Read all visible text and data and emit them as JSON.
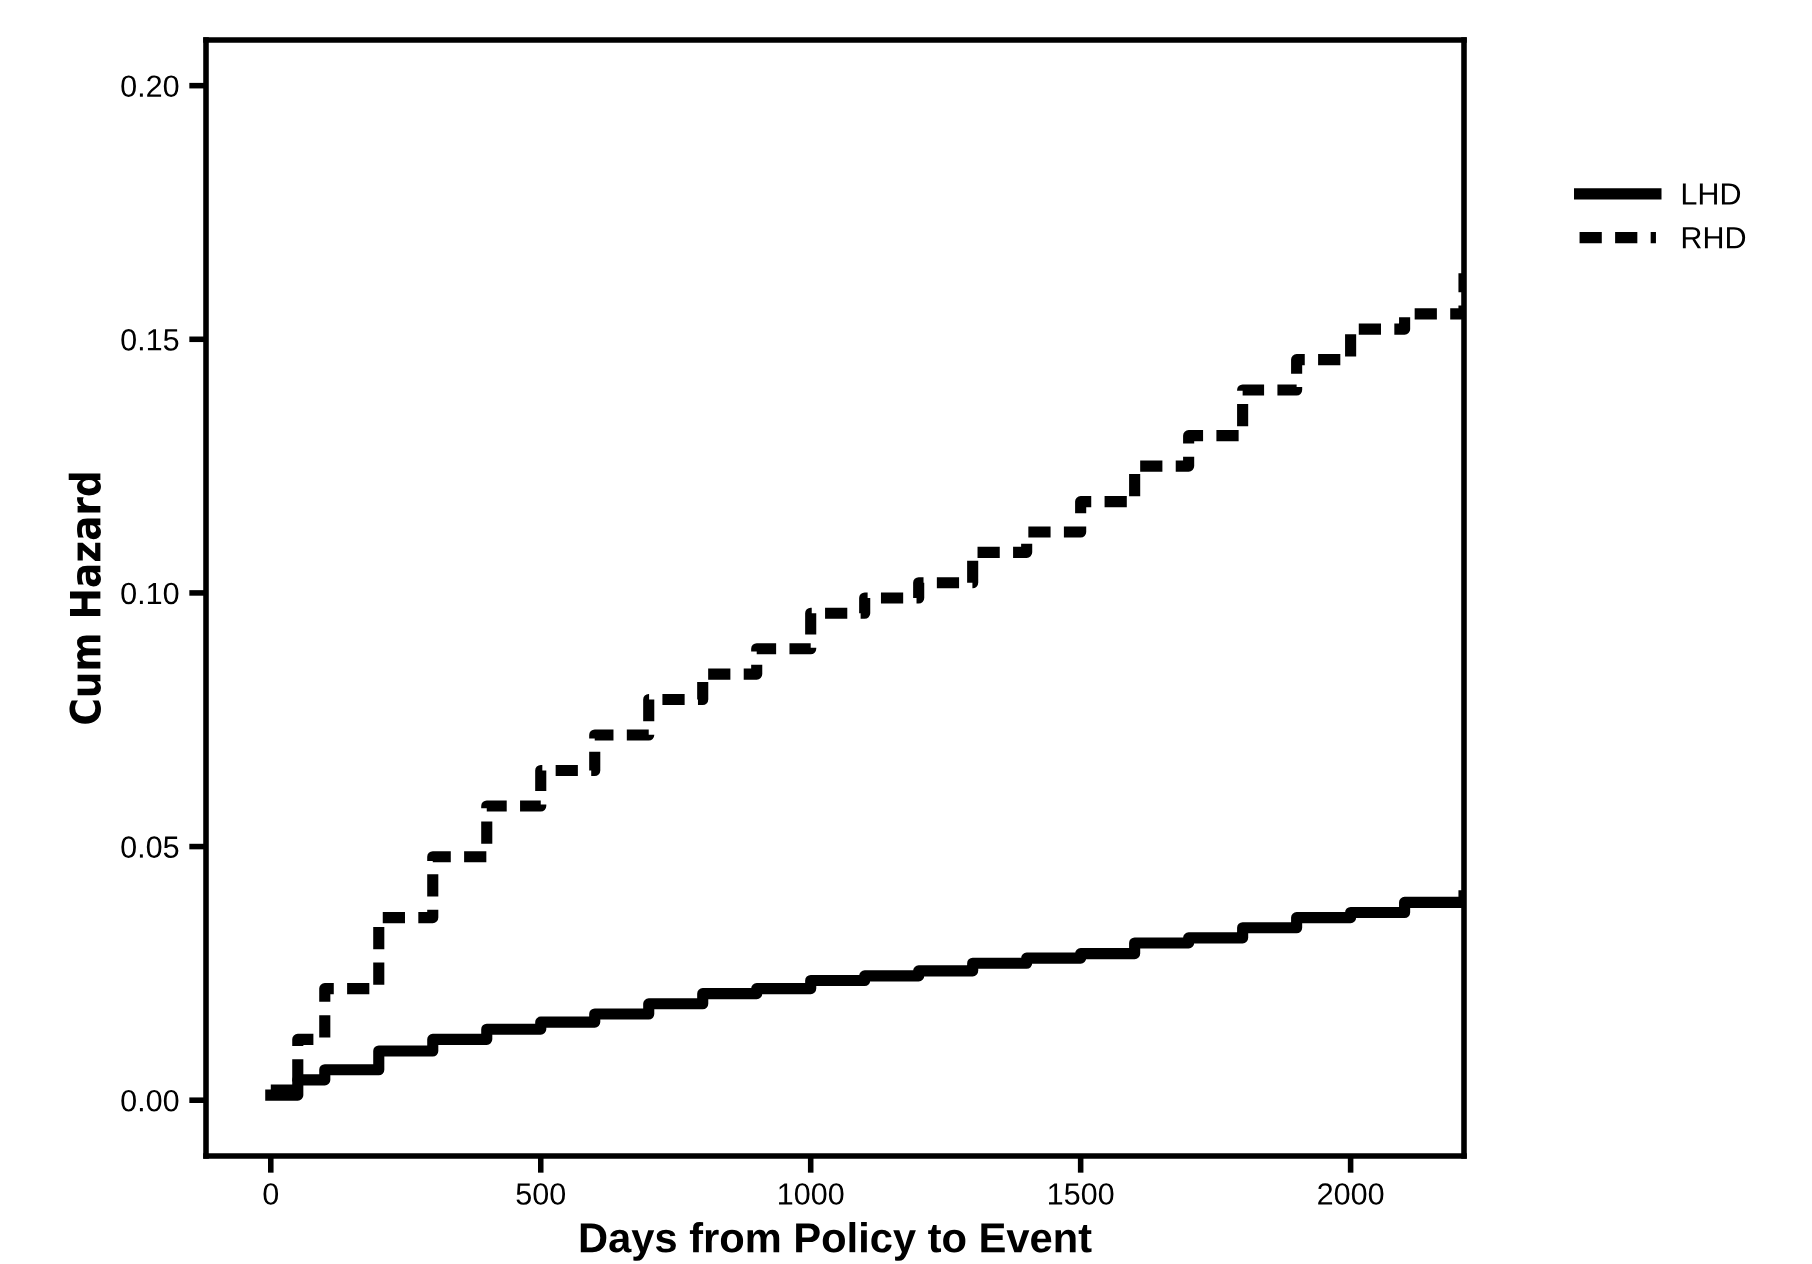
{
  "chart_data": {
    "type": "step",
    "xlabel": "Days from Policy to Event",
    "ylabel": "Cum Hazard",
    "xlim": [
      -120,
      2210
    ],
    "ylim": [
      -0.011,
      0.209
    ],
    "xticks": [
      0,
      500,
      1000,
      1500,
      2000
    ],
    "yticks": [
      {
        "value": 0,
        "label": "0.00"
      },
      {
        "value": 0.05,
        "label": "0.05"
      },
      {
        "value": 0.1,
        "label": "0.10"
      },
      {
        "value": 0.15,
        "label": "0.15"
      },
      {
        "value": 0.2,
        "label": "0.20"
      }
    ],
    "x": [
      0,
      50,
      100,
      200,
      300,
      400,
      500,
      600,
      700,
      800,
      900,
      1000,
      1100,
      1200,
      1300,
      1400,
      1500,
      1600,
      1700,
      1800,
      1900,
      2000,
      2100,
      2210
    ],
    "series": [
      {
        "name": "LHD",
        "color": "#000000",
        "line_style": "solid",
        "values": [
          0.001,
          0.004,
          0.006,
          0.0097,
          0.012,
          0.014,
          0.0154,
          0.017,
          0.019,
          0.021,
          0.022,
          0.0236,
          0.0245,
          0.0255,
          0.027,
          0.028,
          0.0289,
          0.031,
          0.032,
          0.034,
          0.036,
          0.037,
          0.039,
          0.0403
        ]
      },
      {
        "name": "RHD",
        "color": "#000000",
        "line_style": "dashed",
        "values": [
          0.002,
          0.012,
          0.022,
          0.036,
          0.048,
          0.058,
          0.065,
          0.072,
          0.079,
          0.084,
          0.089,
          0.096,
          0.099,
          0.102,
          0.108,
          0.112,
          0.118,
          0.125,
          0.131,
          0.14,
          0.146,
          0.152,
          0.155,
          0.163
        ]
      }
    ],
    "marker": "none",
    "grid": false,
    "legend": "right"
  }
}
